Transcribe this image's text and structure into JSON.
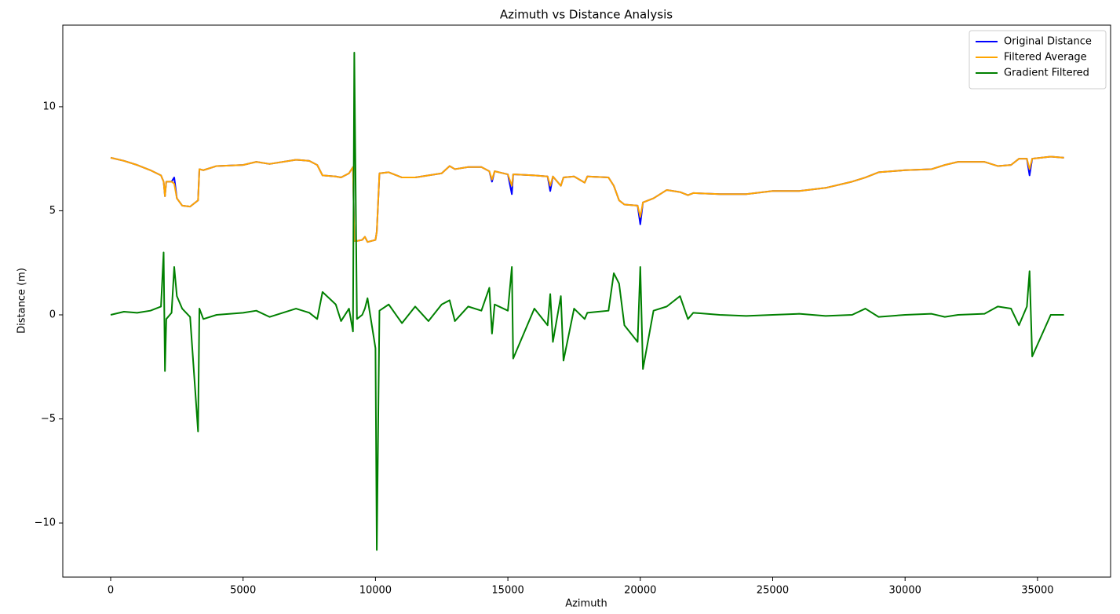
{
  "chart_data": {
    "type": "line",
    "title": "Azimuth vs Distance Analysis",
    "x_label": "Azimuth",
    "y_label": "Distance (m)",
    "x": [
      0,
      500,
      1000,
      1500,
      1900,
      2000,
      2050,
      2100,
      2300,
      2400,
      2500,
      2700,
      3000,
      3300,
      3350,
      3500,
      4000,
      5000,
      5500,
      6000,
      7000,
      7500,
      7800,
      8000,
      8500,
      8700,
      9000,
      9150,
      9200,
      9300,
      9500,
      9600,
      9700,
      10000,
      10050,
      10150,
      10500,
      11000,
      11500,
      12000,
      12500,
      12800,
      13000,
      13500,
      14000,
      14300,
      14400,
      14500,
      15000,
      15150,
      15200,
      16000,
      16500,
      16600,
      16700,
      17000,
      17100,
      17500,
      17900,
      18000,
      18800,
      19000,
      19200,
      19400,
      19900,
      20000,
      20100,
      20500,
      21000,
      21500,
      21800,
      22000,
      23000,
      24000,
      25000,
      26000,
      27000,
      28000,
      28500,
      29000,
      30000,
      31000,
      31500,
      32000,
      33000,
      33500,
      34000,
      34300,
      34600,
      34700,
      34800,
      35500,
      36000
    ],
    "series": [
      {
        "name": "Original Distance",
        "color": "#0000ff",
        "values": [
          7.55,
          7.4,
          7.2,
          6.95,
          6.7,
          6.4,
          5.7,
          6.4,
          6.4,
          6.6,
          5.6,
          5.25,
          5.2,
          5.5,
          7.0,
          6.95,
          7.15,
          7.2,
          7.35,
          7.25,
          7.45,
          7.4,
          7.2,
          6.7,
          6.65,
          6.6,
          6.8,
          7.1,
          3.55,
          3.55,
          3.6,
          3.75,
          3.5,
          3.6,
          4.0,
          6.8,
          6.85,
          6.6,
          6.6,
          6.7,
          6.8,
          7.15,
          7.0,
          7.1,
          7.1,
          6.9,
          6.4,
          6.9,
          6.75,
          5.8,
          6.75,
          6.7,
          6.65,
          5.95,
          6.65,
          6.2,
          6.6,
          6.65,
          6.35,
          6.65,
          6.6,
          6.2,
          5.5,
          5.3,
          5.25,
          4.35,
          5.4,
          5.6,
          6.0,
          5.9,
          5.75,
          5.85,
          5.8,
          5.8,
          5.95,
          5.95,
          6.1,
          6.4,
          6.6,
          6.85,
          6.95,
          7.0,
          7.2,
          7.35,
          7.35,
          7.15,
          7.2,
          7.5,
          7.5,
          6.7,
          7.5,
          7.6,
          7.55
        ]
      },
      {
        "name": "Filtered Average",
        "color": "#ffa500",
        "values": [
          7.55,
          7.4,
          7.2,
          6.95,
          6.7,
          6.4,
          5.7,
          6.4,
          6.4,
          6.3,
          5.6,
          5.25,
          5.2,
          5.5,
          7.0,
          6.95,
          7.15,
          7.2,
          7.35,
          7.25,
          7.45,
          7.4,
          7.2,
          6.7,
          6.65,
          6.6,
          6.8,
          7.1,
          3.55,
          3.55,
          3.6,
          3.75,
          3.5,
          3.6,
          4.0,
          6.8,
          6.85,
          6.6,
          6.6,
          6.7,
          6.8,
          7.15,
          7.0,
          7.1,
          7.1,
          6.9,
          6.5,
          6.9,
          6.75,
          6.2,
          6.75,
          6.7,
          6.65,
          6.2,
          6.65,
          6.2,
          6.6,
          6.65,
          6.35,
          6.65,
          6.6,
          6.2,
          5.5,
          5.3,
          5.25,
          4.7,
          5.4,
          5.6,
          6.0,
          5.9,
          5.75,
          5.85,
          5.8,
          5.8,
          5.95,
          5.95,
          6.1,
          6.4,
          6.6,
          6.85,
          6.95,
          7.0,
          7.2,
          7.35,
          7.35,
          7.15,
          7.2,
          7.5,
          7.5,
          7.0,
          7.5,
          7.6,
          7.55
        ]
      },
      {
        "name": "Gradient Filtered",
        "color": "#008000",
        "values": [
          0.0,
          0.15,
          0.1,
          0.2,
          0.4,
          3.0,
          -2.7,
          -0.2,
          0.1,
          2.3,
          0.9,
          0.3,
          -0.1,
          -5.6,
          0.3,
          -0.2,
          0.0,
          0.1,
          0.2,
          -0.1,
          0.3,
          0.1,
          -0.2,
          1.1,
          0.5,
          -0.3,
          0.3,
          -0.8,
          12.6,
          -0.2,
          0.0,
          0.3,
          0.8,
          -1.6,
          -11.3,
          0.2,
          0.5,
          -0.4,
          0.4,
          -0.3,
          0.5,
          0.7,
          -0.3,
          0.4,
          0.2,
          1.3,
          -0.9,
          0.5,
          0.2,
          2.3,
          -2.1,
          0.3,
          -0.5,
          1.0,
          -1.3,
          0.9,
          -2.2,
          0.3,
          -0.2,
          0.1,
          0.2,
          2.0,
          1.5,
          -0.5,
          -1.3,
          2.3,
          -2.6,
          0.2,
          0.4,
          0.9,
          -0.2,
          0.1,
          0.0,
          -0.05,
          0.0,
          0.05,
          -0.05,
          0.0,
          0.3,
          -0.1,
          0.0,
          0.05,
          -0.1,
          0.0,
          0.05,
          0.4,
          0.3,
          -0.5,
          0.4,
          2.1,
          -2.0,
          0.0,
          0.0
        ]
      }
    ],
    "xlim": [
      -1808,
      37760
    ],
    "ylim": [
      -12.6,
      13.92
    ],
    "xticks": [
      0,
      5000,
      10000,
      15000,
      20000,
      25000,
      30000,
      35000
    ],
    "yticks": [
      {
        "value": -10,
        "label": "−10"
      },
      {
        "value": -5,
        "label": "−5"
      },
      0,
      5,
      10
    ],
    "grid": false,
    "legend": "upper right"
  }
}
